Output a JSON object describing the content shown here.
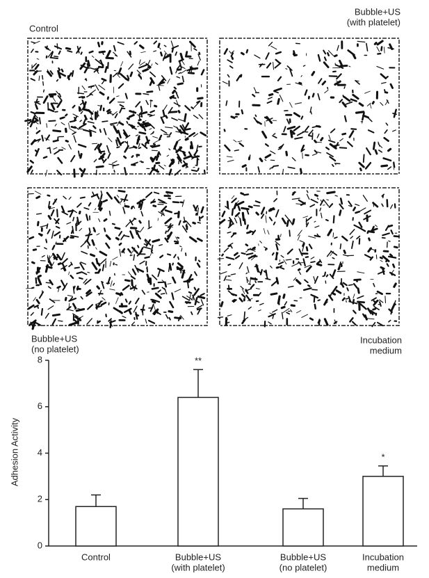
{
  "panels": [
    {
      "label": [
        "Control"
      ]
    },
    {
      "label": [
        "Bubble+US",
        "(with platelet)"
      ]
    },
    {
      "label": [
        "Bubble+US",
        "(no platelet)"
      ]
    },
    {
      "label": [
        "Incubation",
        "medium"
      ]
    }
  ],
  "chart_data": {
    "type": "bar",
    "y_label": "Adhesion Activity",
    "categories": [
      [
        "Control"
      ],
      [
        "Bubble+US",
        "(with platelet)"
      ],
      [
        "Bubble+US",
        "(no platelet)"
      ],
      [
        "Incubation",
        "medium"
      ]
    ],
    "values": [
      1.7,
      6.4,
      1.6,
      3.0
    ],
    "errors": [
      0.5,
      1.2,
      0.45,
      0.45
    ],
    "significance": [
      null,
      "**",
      null,
      "*"
    ],
    "color": "#ffffff",
    "ylim": [
      0,
      8
    ],
    "yticks": [
      0,
      2,
      4,
      6,
      8
    ],
    "grid": false
  }
}
